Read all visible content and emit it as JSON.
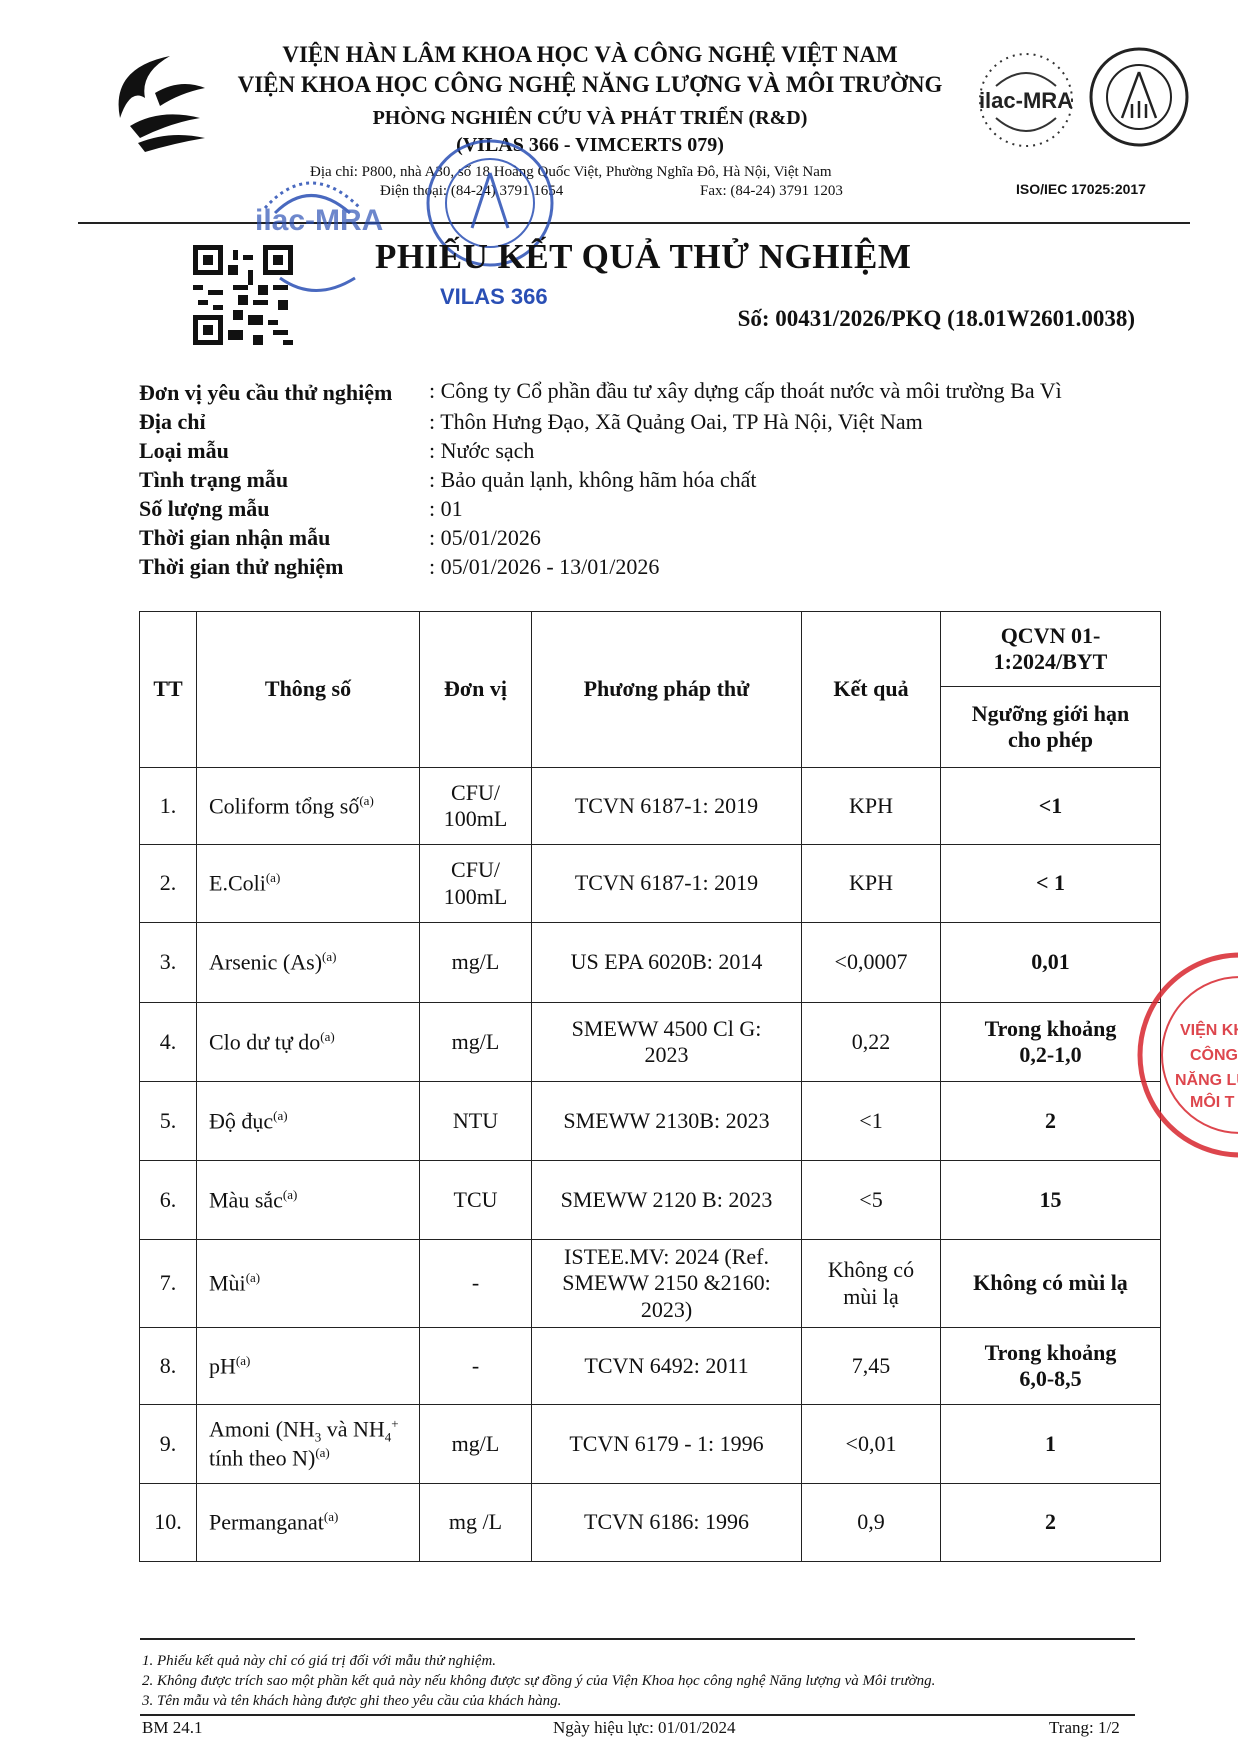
{
  "header": {
    "line1": "VIỆN HÀN LÂM KHOA HỌC VÀ CÔNG NGHỆ VIỆT NAM",
    "line2": "VIỆN KHOA HỌC CÔNG NGHỆ NĂNG LƯỢNG VÀ MÔI TRƯỜNG",
    "line3": "PHÒNG NGHIÊN CỨU VÀ PHÁT TRIỂN (R&D)",
    "line4": "(VILAS 366 - VIMCERTS 079)",
    "address": "Địa chỉ: P800, nhà A30, số 18 Hoàng Quốc Việt, Phường Nghĩa Đô, Hà Nội, Việt Nam",
    "phone": "Điện thoại: (84-24) 3791 1654",
    "fax": "Fax: (84-24) 3791 1203",
    "ilac_logo": "ilac-MRA",
    "accreditation_logo": "BUREAU OF ACCREDITATION VIETNAM",
    "iso": "ISO/IEC 17025:2017",
    "vilas_stamp": "VILAS 366"
  },
  "title": "PHIẾU KẾT QUẢ THỬ NGHIỆM",
  "doc_number": "Số: 00431/2026/PKQ (18.01W2601.0038)",
  "info": [
    {
      "label": "Đơn vị yêu cầu thử nghiệm",
      "value": ": Công ty Cổ phần đầu tư xây dựng cấp thoát nước và môi trường Ba Vì"
    },
    {
      "label": "Địa chỉ",
      "value": ": Thôn Hưng Đạo, Xã Quảng Oai, TP Hà Nội, Việt Nam"
    },
    {
      "label": "Loại mẫu",
      "value": ": Nước sạch"
    },
    {
      "label": "Tình trạng mẫu",
      "value": ": Bảo quản lạnh, không hãm hóa chất"
    },
    {
      "label": "Số lượng mẫu",
      "value": ": 01"
    },
    {
      "label": "Thời gian nhận mẫu",
      "value": ": 05/01/2026"
    },
    {
      "label": "Thời gian thử nghiệm",
      "value": ": 05/01/2026 - 13/01/2026"
    }
  ],
  "table": {
    "headers": {
      "tt": "TT",
      "param": "Thông số",
      "unit": "Đơn vị",
      "method": "Phương pháp thử",
      "result": "Kết quả",
      "standard": "QCVN 01-1:2024/BYT",
      "limit": "Ngưỡng giới hạn cho phép"
    },
    "superscript": "(a)",
    "rows": [
      {
        "tt": "1.",
        "param": "Coliform tổng số",
        "unit": "CFU/ 100mL",
        "method": "TCVN 6187-1: 2019",
        "result": "KPH",
        "limit": "<1"
      },
      {
        "tt": "2.",
        "param": "E.Coli",
        "unit": "CFU/ 100mL",
        "method": "TCVN 6187-1: 2019",
        "result": "KPH",
        "limit": "< 1"
      },
      {
        "tt": "3.",
        "param": "Arsenic (As)",
        "unit": "mg/L",
        "method": "US EPA 6020B: 2014",
        "result": "<0,0007",
        "limit": "0,01"
      },
      {
        "tt": "4.",
        "param": "Clo dư tự do",
        "unit": "mg/L",
        "method": "SMEWW 4500 Cl G: 2023",
        "result": "0,22",
        "limit": "Trong khoảng 0,2-1,0"
      },
      {
        "tt": "5.",
        "param": "Độ đục",
        "unit": "NTU",
        "method": "SMEWW 2130B: 2023",
        "result": "<1",
        "limit": "2"
      },
      {
        "tt": "6.",
        "param": "Màu sắc",
        "unit": "TCU",
        "method": "SMEWW 2120 B: 2023",
        "result": "<5",
        "limit": "15"
      },
      {
        "tt": "7.",
        "param": "Mùi",
        "unit": "-",
        "method": "ISTEE.MV: 2024 (Ref. SMEWW 2150 &2160: 2023)",
        "result": "Không có mùi lạ",
        "limit": "Không có mùi lạ"
      },
      {
        "tt": "8.",
        "param": "pH",
        "unit": "-",
        "method": "TCVN 6492: 2011",
        "result": "7,45",
        "limit": "Trong khoảng 6,0-8,5"
      },
      {
        "tt": "9.",
        "param_a": "Amoni (NH",
        "param_b": "3",
        "param_c": " và NH",
        "param_d": "4",
        "param_e": "+",
        "param_f": " tính theo N)",
        "unit": "mg/L",
        "method": "TCVN 6179 - 1: 1996",
        "result": "<0,01",
        "limit": "1"
      },
      {
        "tt": "10.",
        "param": "Permanganat",
        "unit": "mg /L",
        "method": "TCVN 6186: 1996",
        "result": "0,9",
        "limit": "2"
      }
    ]
  },
  "notes": [
    "1. Phiếu kết quả này chỉ có giá trị đối với mẫu thử nghiệm.",
    "2. Không được trích sao một phần kết quả này nếu không được sự đồng ý của Viện Khoa học công nghệ Năng lượng và Môi trường.",
    "3. Tên mẫu và tên khách hàng được ghi theo yêu cầu của khách hàng."
  ],
  "footer": {
    "code": "BM 24.1",
    "effective": "Ngày hiệu lực: 01/01/2024",
    "page": "Trang: 1/2"
  },
  "red_stamp": "VIỆN HÀN LÂM KHOA HỌC - VIỆN KHOA HỌC CÔNG NGHỆ NĂNG LƯỢNG VÀ MÔI TRƯỜNG",
  "colors": {
    "stamp_blue": "#2a4fb5",
    "stamp_red": "#d8262e"
  }
}
